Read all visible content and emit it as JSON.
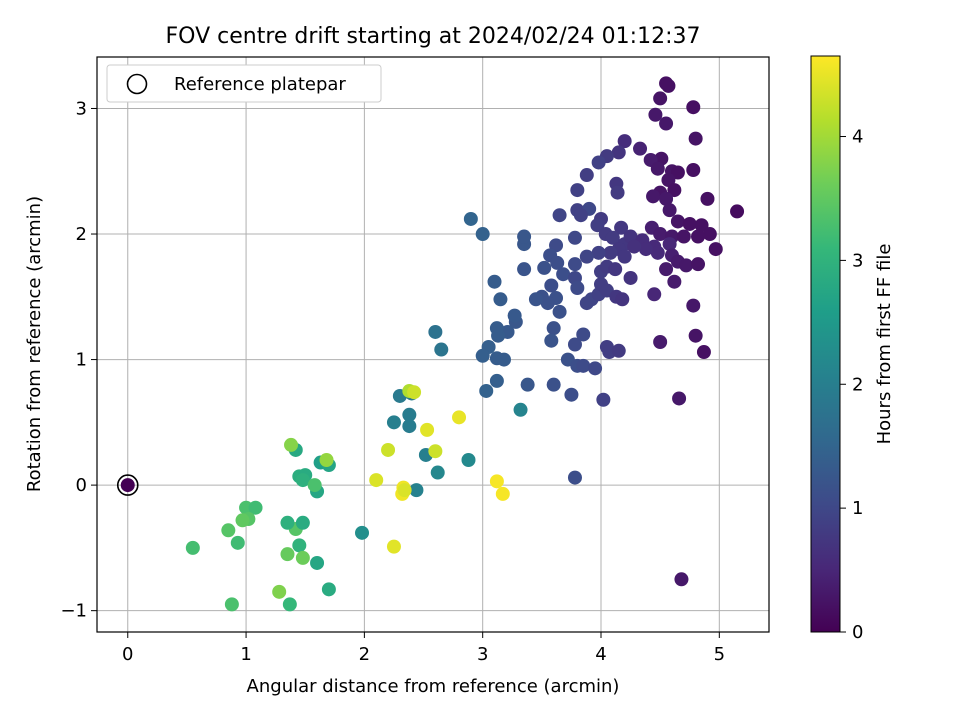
{
  "chart_data": {
    "type": "scatter",
    "title": "FOV centre drift starting at 2024/02/24 01:12:37",
    "xlabel": "Angular distance from reference (arcmin)",
    "ylabel": "Rotation from reference (arcmin)",
    "xlim": [
      -0.26,
      5.42
    ],
    "ylim": [
      -1.17,
      3.41
    ],
    "x_ticks": [
      0,
      1,
      2,
      3,
      4,
      5
    ],
    "y_ticks": [
      -1,
      0,
      1,
      2,
      3
    ],
    "grid": true,
    "legend": {
      "placement": "top-left",
      "entries": [
        "Reference platepar"
      ]
    },
    "colorbar": {
      "label": "Hours from first FF file",
      "range": [
        0,
        4.65
      ],
      "ticks": [
        0,
        1,
        2,
        3,
        4
      ],
      "colormap": "viridis"
    },
    "reference_point": {
      "x": 0,
      "y": 0
    },
    "points": [
      [
        0,
        0,
        0
      ],
      [
        4.55,
        3.2,
        0.2
      ],
      [
        4.57,
        3.18,
        0.2
      ],
      [
        4.5,
        3.08,
        0.25
      ],
      [
        4.78,
        3.01,
        0.2
      ],
      [
        4.46,
        2.95,
        0.3
      ],
      [
        4.55,
        2.88,
        0.3
      ],
      [
        4.8,
        2.76,
        0.25
      ],
      [
        4.2,
        2.74,
        0.6
      ],
      [
        4.33,
        2.68,
        0.45
      ],
      [
        4.15,
        2.65,
        0.7
      ],
      [
        4.05,
        2.62,
        0.8
      ],
      [
        4.51,
        2.6,
        0.25
      ],
      [
        4.42,
        2.59,
        0.35
      ],
      [
        3.98,
        2.57,
        0.9
      ],
      [
        4.48,
        2.52,
        0.3
      ],
      [
        4.6,
        2.5,
        0.25
      ],
      [
        4.78,
        2.51,
        0.2
      ],
      [
        4.65,
        2.49,
        0.2
      ],
      [
        3.88,
        2.47,
        0.85
      ],
      [
        4.13,
        2.4,
        0.75
      ],
      [
        4.57,
        2.43,
        0.25
      ],
      [
        4.62,
        2.35,
        0.2
      ],
      [
        4.5,
        2.33,
        0.25
      ],
      [
        4.44,
        2.3,
        0.3
      ],
      [
        4.55,
        2.28,
        0.3
      ],
      [
        4.9,
        2.28,
        0.2
      ],
      [
        4.14,
        2.33,
        0.8
      ],
      [
        3.8,
        2.35,
        0.9
      ],
      [
        4.58,
        2.19,
        0.3
      ],
      [
        4.65,
        2.1,
        0.25
      ],
      [
        4.75,
        2.08,
        0.2
      ],
      [
        4.85,
        2.07,
        0.2
      ],
      [
        4.92,
        2.0,
        0.2
      ],
      [
        5.15,
        2.18,
        0.15
      ],
      [
        3.8,
        2.19,
        0.9
      ],
      [
        3.9,
        2.2,
        1.0
      ],
      [
        3.83,
        2.15,
        0.9
      ],
      [
        3.65,
        2.15,
        0.95
      ],
      [
        4.0,
        2.12,
        0.8
      ],
      [
        4.17,
        2.05,
        0.75
      ],
      [
        4.43,
        2.05,
        0.4
      ],
      [
        4.5,
        2.0,
        0.35
      ],
      [
        4.6,
        1.98,
        0.3
      ],
      [
        4.7,
        1.98,
        0.25
      ],
      [
        4.82,
        1.98,
        0.2
      ],
      [
        3.97,
        2.07,
        0.85
      ],
      [
        4.04,
        2.0,
        0.8
      ],
      [
        4.1,
        1.97,
        0.8
      ],
      [
        4.2,
        1.92,
        0.75
      ],
      [
        4.25,
        1.98,
        0.7
      ],
      [
        4.35,
        1.95,
        0.6
      ],
      [
        4.45,
        1.9,
        0.55
      ],
      [
        4.58,
        1.92,
        0.5
      ],
      [
        4.48,
        1.85,
        0.55
      ],
      [
        4.38,
        1.88,
        0.6
      ],
      [
        4.28,
        1.9,
        0.65
      ],
      [
        4.15,
        1.88,
        0.75
      ],
      [
        4.2,
        1.82,
        0.75
      ],
      [
        4.08,
        1.85,
        0.8
      ],
      [
        3.98,
        1.85,
        0.9
      ],
      [
        3.88,
        1.82,
        0.95
      ],
      [
        4.6,
        1.83,
        0.4
      ],
      [
        4.65,
        1.78,
        0.35
      ],
      [
        4.72,
        1.75,
        0.3
      ],
      [
        4.82,
        1.76,
        0.25
      ],
      [
        4.97,
        1.88,
        0.2
      ],
      [
        4.55,
        1.72,
        0.35
      ],
      [
        3.78,
        1.97,
        1.0
      ],
      [
        3.62,
        1.91,
        1.05
      ],
      [
        3.57,
        1.83,
        1.1
      ],
      [
        3.52,
        1.73,
        1.15
      ],
      [
        3.63,
        1.77,
        1.1
      ],
      [
        3.68,
        1.68,
        1.1
      ],
      [
        3.78,
        1.76,
        1.05
      ],
      [
        3.78,
        1.65,
        1.0
      ],
      [
        3.8,
        1.57,
        1.05
      ],
      [
        3.58,
        1.59,
        1.1
      ],
      [
        3.62,
        1.49,
        1.15
      ],
      [
        3.5,
        1.5,
        1.15
      ],
      [
        3.55,
        1.45,
        1.15
      ],
      [
        3.45,
        1.48,
        1.2
      ],
      [
        3.35,
        1.72,
        1.2
      ],
      [
        3.35,
        1.92,
        1.25
      ],
      [
        3.35,
        1.98,
        1.25
      ],
      [
        3.0,
        2.0,
        1.45
      ],
      [
        2.9,
        2.12,
        1.5
      ],
      [
        3.1,
        1.62,
        1.35
      ],
      [
        3.15,
        1.48,
        1.35
      ],
      [
        3.28,
        1.3,
        1.25
      ],
      [
        3.27,
        1.35,
        1.3
      ],
      [
        3.21,
        1.22,
        1.3
      ],
      [
        3.13,
        1.19,
        1.35
      ],
      [
        3.12,
        1.25,
        1.35
      ],
      [
        3.05,
        1.1,
        1.4
      ],
      [
        3.0,
        1.03,
        1.4
      ],
      [
        3.12,
        1.01,
        1.35
      ],
      [
        3.18,
        1.0,
        1.35
      ],
      [
        3.12,
        0.83,
        1.4
      ],
      [
        3.03,
        0.75,
        1.45
      ],
      [
        3.38,
        0.8,
        1.25
      ],
      [
        3.6,
        1.25,
        1.15
      ],
      [
        3.58,
        1.15,
        1.2
      ],
      [
        3.65,
        1.38,
        1.15
      ],
      [
        3.72,
        1.0,
        1.15
      ],
      [
        3.8,
        0.95,
        1.1
      ],
      [
        3.85,
        0.95,
        1.05
      ],
      [
        3.95,
        0.93,
        1.0
      ],
      [
        3.85,
        1.2,
        1.05
      ],
      [
        3.78,
        1.12,
        1.05
      ],
      [
        3.88,
        1.45,
        0.95
      ],
      [
        3.92,
        1.48,
        0.95
      ],
      [
        3.98,
        1.52,
        0.9
      ],
      [
        4.0,
        1.6,
        0.85
      ],
      [
        4.05,
        1.55,
        0.85
      ],
      [
        4.0,
        1.7,
        0.85
      ],
      [
        4.05,
        1.74,
        0.8
      ],
      [
        4.12,
        1.72,
        0.75
      ],
      [
        4.25,
        1.65,
        0.7
      ],
      [
        4.13,
        1.5,
        0.75
      ],
      [
        4.18,
        1.48,
        0.7
      ],
      [
        4.45,
        1.52,
        0.5
      ],
      [
        4.62,
        1.62,
        0.35
      ],
      [
        4.78,
        1.43,
        0.3
      ],
      [
        4.8,
        1.19,
        0.25
      ],
      [
        4.87,
        1.06,
        0.2
      ],
      [
        4.5,
        1.14,
        0.35
      ],
      [
        4.05,
        1.1,
        0.85
      ],
      [
        4.07,
        1.06,
        0.85
      ],
      [
        4.15,
        1.07,
        0.8
      ],
      [
        3.75,
        0.72,
        1.1
      ],
      [
        3.6,
        0.8,
        1.15
      ],
      [
        4.02,
        0.68,
        0.9
      ],
      [
        4.66,
        0.69,
        0.3
      ],
      [
        3.78,
        0.06,
        1.1
      ],
      [
        4.68,
        -0.75,
        0.3
      ],
      [
        2.6,
        1.22,
        1.75
      ],
      [
        2.65,
        1.08,
        1.8
      ],
      [
        2.3,
        0.71,
        1.9
      ],
      [
        2.4,
        0.73,
        1.9
      ],
      [
        2.38,
        0.56,
        1.95
      ],
      [
        2.25,
        0.5,
        2.0
      ],
      [
        2.38,
        0.47,
        1.95
      ],
      [
        3.32,
        0.6,
        2.1
      ],
      [
        2.88,
        0.2,
        2.2
      ],
      [
        2.62,
        0.1,
        2.15
      ],
      [
        2.52,
        0.24,
        2.0
      ],
      [
        2.44,
        -0.04,
        2.05
      ],
      [
        1.98,
        -0.38,
        2.3
      ],
      [
        1.63,
        0.18,
        2.6
      ],
      [
        1.7,
        0.16,
        2.7
      ],
      [
        1.6,
        -0.05,
        2.75
      ],
      [
        1.42,
        0.28,
        2.8
      ],
      [
        1.45,
        0.07,
        2.9
      ],
      [
        1.5,
        0.08,
        2.85
      ],
      [
        1.48,
        0.04,
        2.95
      ],
      [
        1.58,
        0.0,
        3.3
      ],
      [
        1.42,
        -0.35,
        3.4
      ],
      [
        1.48,
        -0.3,
        2.85
      ],
      [
        1.35,
        -0.3,
        2.95
      ],
      [
        1.45,
        -0.48,
        3.0
      ],
      [
        1.6,
        -0.62,
        2.75
      ],
      [
        1.7,
        -0.83,
        2.85
      ],
      [
        1.37,
        -0.95,
        3.1
      ],
      [
        1.0,
        -0.18,
        3.3
      ],
      [
        1.08,
        -0.18,
        3.2
      ],
      [
        1.02,
        -0.27,
        3.4
      ],
      [
        0.97,
        -0.28,
        3.5
      ],
      [
        0.85,
        -0.36,
        3.4
      ],
      [
        0.93,
        -0.46,
        3.2
      ],
      [
        0.55,
        -0.5,
        3.25
      ],
      [
        0.88,
        -0.95,
        3.3
      ],
      [
        1.35,
        -0.55,
        3.55
      ],
      [
        1.48,
        -0.58,
        3.6
      ],
      [
        1.28,
        -0.85,
        3.75
      ],
      [
        1.38,
        0.32,
        3.8
      ],
      [
        1.68,
        0.2,
        3.9
      ],
      [
        2.38,
        0.75,
        4.1
      ],
      [
        2.42,
        0.74,
        4.3
      ],
      [
        2.53,
        0.44,
        4.45
      ],
      [
        2.6,
        0.27,
        4.3
      ],
      [
        2.8,
        0.54,
        4.5
      ],
      [
        2.2,
        0.28,
        4.3
      ],
      [
        2.1,
        0.04,
        4.4
      ],
      [
        2.33,
        -0.02,
        4.55
      ],
      [
        2.32,
        -0.07,
        4.55
      ],
      [
        2.34,
        -0.04,
        4.4
      ],
      [
        2.25,
        -0.49,
        4.45
      ],
      [
        3.12,
        0.03,
        4.6
      ],
      [
        3.17,
        -0.07,
        4.6
      ]
    ]
  }
}
